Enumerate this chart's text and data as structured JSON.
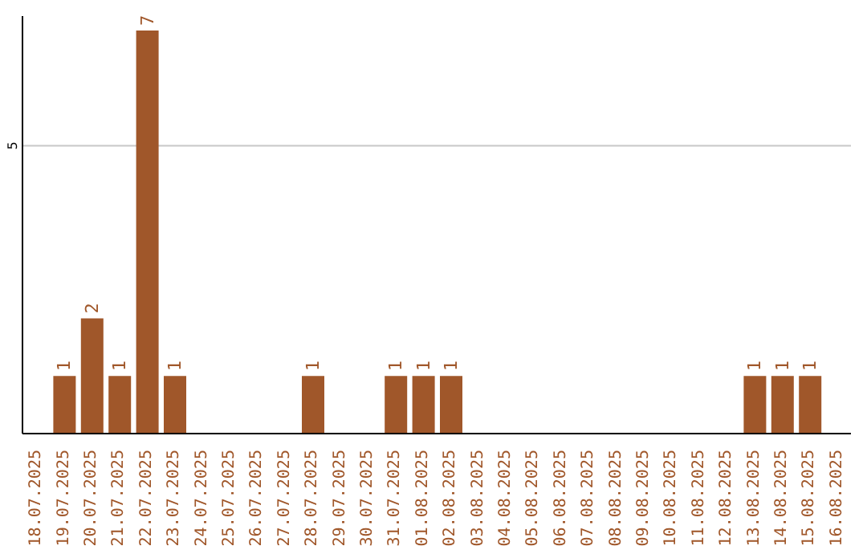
{
  "chart_data": {
    "type": "bar",
    "categories": [
      "18.07.2025",
      "19.07.2025",
      "20.07.2025",
      "21.07.2025",
      "22.07.2025",
      "23.07.2025",
      "24.07.2025",
      "25.07.2025",
      "26.07.2025",
      "27.07.2025",
      "28.07.2025",
      "29.07.2025",
      "30.07.2025",
      "31.07.2025",
      "01.08.2025",
      "02.08.2025",
      "03.08.2025",
      "04.08.2025",
      "05.08.2025",
      "06.08.2025",
      "07.08.2025",
      "08.08.2025",
      "09.08.2025",
      "10.08.2025",
      "11.08.2025",
      "12.08.2025",
      "13.08.2025",
      "14.08.2025",
      "15.08.2025",
      "16.08.2025"
    ],
    "values": [
      0,
      1,
      2,
      1,
      7,
      1,
      0,
      0,
      0,
      0,
      1,
      0,
      0,
      1,
      1,
      1,
      0,
      0,
      0,
      0,
      0,
      0,
      0,
      0,
      0,
      0,
      1,
      1,
      1,
      0
    ],
    "value_labels": [
      null,
      "1",
      "2",
      "1",
      "7",
      "1",
      null,
      null,
      null,
      null,
      "1",
      null,
      null,
      "1",
      "1",
      "1",
      null,
      null,
      null,
      null,
      null,
      null,
      null,
      null,
      null,
      null,
      "1",
      "1",
      "1",
      null
    ],
    "color": "#a0572a",
    "ylim": [
      0,
      7.25
    ],
    "yticks": [
      5
    ],
    "grid": "y"
  }
}
